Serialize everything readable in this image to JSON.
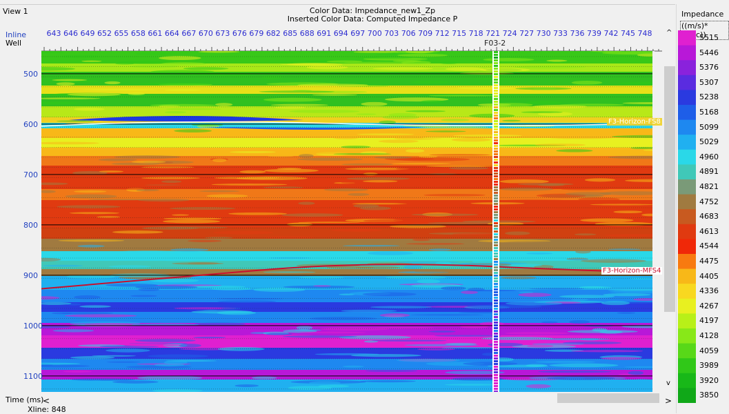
{
  "window": {
    "view_title": "View 1"
  },
  "header": {
    "color_data": "Color Data: Impedance_new1_Zp",
    "inserted_color_data": "Inserted Color Data: Computed Impedance P"
  },
  "axes": {
    "inline_label": "Inline",
    "well_label": "Well",
    "inline_values": [
      "643",
      "646",
      "649",
      "652",
      "655",
      "658",
      "661",
      "664",
      "667",
      "670",
      "673",
      "676",
      "679",
      "682",
      "685",
      "688",
      "691",
      "694",
      "697",
      "700",
      "703",
      "706",
      "709",
      "712",
      "715",
      "718",
      "721",
      "724",
      "727",
      "730",
      "733",
      "736",
      "739",
      "742",
      "745",
      "748"
    ],
    "time_label": "Time (ms)",
    "time_values": [
      "500",
      "600",
      "700",
      "800",
      "900",
      "1000",
      "1100"
    ],
    "xline_label": "Xline: 848"
  },
  "well": {
    "name": "F03-2"
  },
  "horizons": [
    {
      "name": "F3-Horizon-FS8",
      "color": "#ffffff",
      "time": 596
    },
    {
      "name": "F3-Horizon-MFS4",
      "color": "#c8102e",
      "time": 894
    }
  ],
  "colorbar": {
    "title": "Impedance",
    "unit": "((m/s)*(g/cc))",
    "values": [
      "5515",
      "5446",
      "5376",
      "5307",
      "5238",
      "5168",
      "5099",
      "5029",
      "4960",
      "4891",
      "4821",
      "4752",
      "4683",
      "4613",
      "4544",
      "4475",
      "4405",
      "4336",
      "4267",
      "4197",
      "4128",
      "4059",
      "3989",
      "3920",
      "3850"
    ],
    "colors": [
      "#e020d0",
      "#b818d8",
      "#8a22dc",
      "#5a2ce0",
      "#2a3ae0",
      "#1e5ee8",
      "#1e88f0",
      "#20b0f0",
      "#2ad8e8",
      "#40c8b8",
      "#7a9a78",
      "#a07a40",
      "#c85a20",
      "#e03a10",
      "#f02808",
      "#f87a10",
      "#f8b818",
      "#f8d820",
      "#e8f020",
      "#b8f018",
      "#88e818",
      "#58d818",
      "#30c818",
      "#18b818",
      "#10a818"
    ]
  },
  "scrollbars": {
    "left_arrow": "<",
    "right_arrow": ">",
    "up_arrow": "^",
    "down_arrow": "v"
  }
}
